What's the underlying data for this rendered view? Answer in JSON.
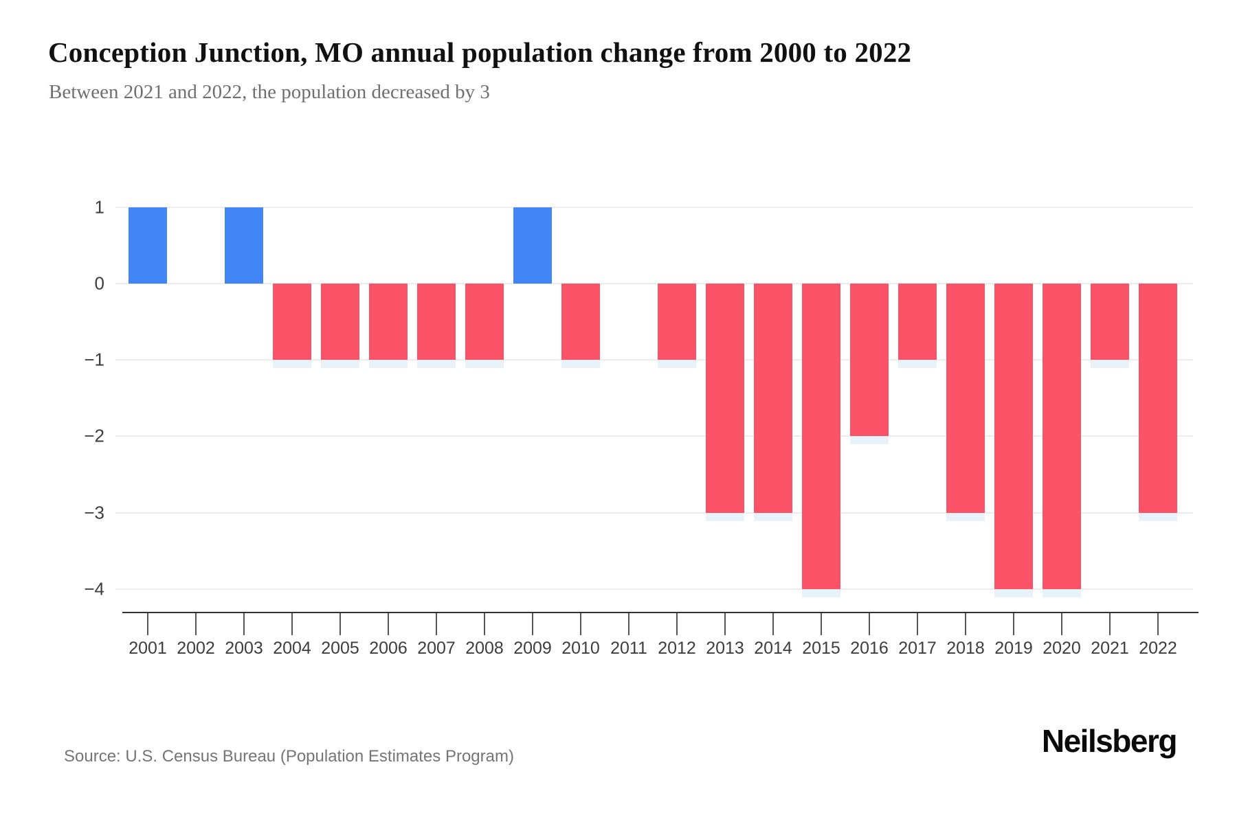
{
  "header": {
    "title": "Conception Junction, MO annual population change from 2000 to 2022",
    "subtitle": "Between 2021 and 2022, the population decreased by 3"
  },
  "chart_data": {
    "type": "bar",
    "title": "Conception Junction, MO annual population change from 2000 to 2022",
    "categories": [
      "2001",
      "2002",
      "2003",
      "2004",
      "2005",
      "2006",
      "2007",
      "2008",
      "2009",
      "2010",
      "2011",
      "2012",
      "2013",
      "2014",
      "2015",
      "2016",
      "2017",
      "2018",
      "2019",
      "2020",
      "2021",
      "2022"
    ],
    "values": [
      1,
      0,
      1,
      -1,
      -1,
      -1,
      -1,
      -1,
      1,
      -1,
      0,
      -1,
      -3,
      -3,
      -4,
      -2,
      -1,
      -3,
      -4,
      -4,
      -1,
      -3
    ],
    "xlabel": "",
    "ylabel": "",
    "ylim": [
      -4,
      1
    ],
    "ytick_values": [
      1,
      0,
      -1,
      -2,
      -3,
      -4
    ],
    "ytick_labels": [
      "1",
      "0",
      "−1",
      "−2",
      "−3",
      "−4"
    ],
    "grid": true,
    "legend": false,
    "positive_color": "#4285F4",
    "negative_color": "#FA5368"
  },
  "colors": {
    "positive_bar": "#4285F4",
    "negative_bar": "#FA5368",
    "gridline": "#EDEDED",
    "bar_shadow": "#E8F2FB",
    "axis_line": "#333333",
    "title_text": "#111111",
    "subtitle_text": "#6F6F6F",
    "tick_text": "#3D3D3D"
  },
  "footer": {
    "source": "Source: U.S. Census Bureau (Population Estimates Program)",
    "brand": "Neilsberg"
  }
}
